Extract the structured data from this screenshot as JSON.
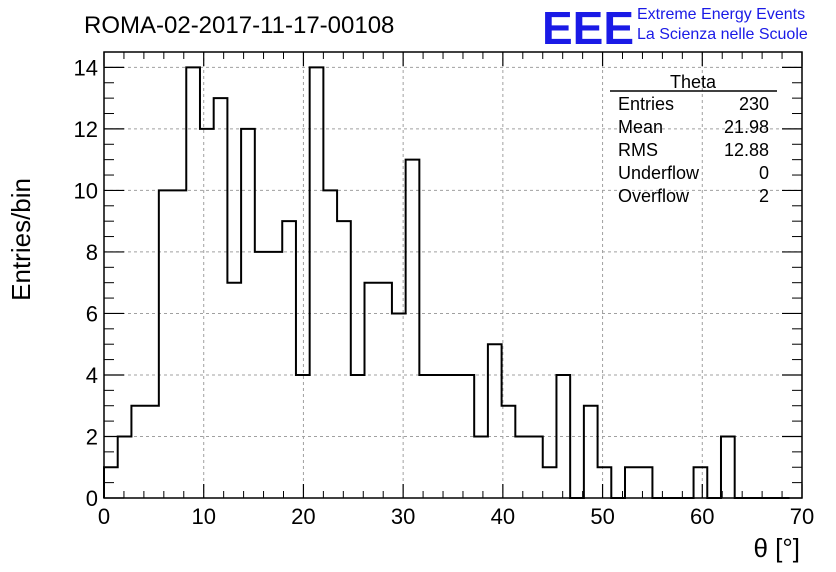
{
  "chart_data": {
    "type": "bar",
    "title": "ROMA-02-2017-11-17-00108",
    "xlabel": "θ [°]",
    "ylabel": "Entries/bin",
    "xlim": [
      0,
      70
    ],
    "ylim": [
      0,
      14.5
    ],
    "grid": true,
    "bin_width": 1.375,
    "x": [
      0,
      1.375,
      2.75,
      4.125,
      5.5,
      6.875,
      8.25,
      9.625,
      11.0,
      12.375,
      13.75,
      15.125,
      16.5,
      17.875,
      19.25,
      20.625,
      22.0,
      23.375,
      24.75,
      26.125,
      27.5,
      28.875,
      30.25,
      31.625,
      33.0,
      34.375,
      35.75,
      37.125,
      38.5,
      39.875,
      41.25,
      42.625,
      44.0,
      45.375,
      46.75,
      48.125,
      49.5,
      50.875,
      52.25,
      53.625,
      55.0,
      56.375,
      57.75,
      59.125,
      60.5,
      61.875,
      63.25,
      64.625,
      66.0,
      67.375
    ],
    "values": [
      1,
      2,
      3,
      3,
      10,
      10,
      14,
      12,
      13,
      7,
      12,
      8,
      8,
      9,
      4,
      14,
      10,
      9,
      4,
      7,
      7,
      6,
      11,
      4,
      4,
      4,
      4,
      2,
      5,
      3,
      2,
      2,
      1,
      4,
      0,
      3,
      1,
      0,
      1,
      1,
      0,
      0,
      0,
      1,
      0,
      2,
      0,
      0,
      0,
      0
    ],
    "x_ticks": [
      "0",
      "10",
      "20",
      "30",
      "40",
      "50",
      "60",
      "70"
    ],
    "y_ticks": [
      "0",
      "2",
      "4",
      "6",
      "8",
      "10",
      "12",
      "14"
    ],
    "stats": {
      "name": "Theta",
      "rows": [
        {
          "label": "Entries",
          "value": "230"
        },
        {
          "label": "Mean",
          "value": "21.98"
        },
        {
          "label": "RMS",
          "value": "12.88"
        },
        {
          "label": "Underflow",
          "value": "0"
        },
        {
          "label": "Overflow",
          "value": "2"
        }
      ]
    },
    "logo": {
      "mark": "EEE",
      "line1": "Extreme Energy Events",
      "line2": "La Scienza nelle Scuole"
    },
    "colors": {
      "line": "#000000",
      "grid": "#a0a0a0",
      "logo": "#1a1ae6"
    }
  }
}
